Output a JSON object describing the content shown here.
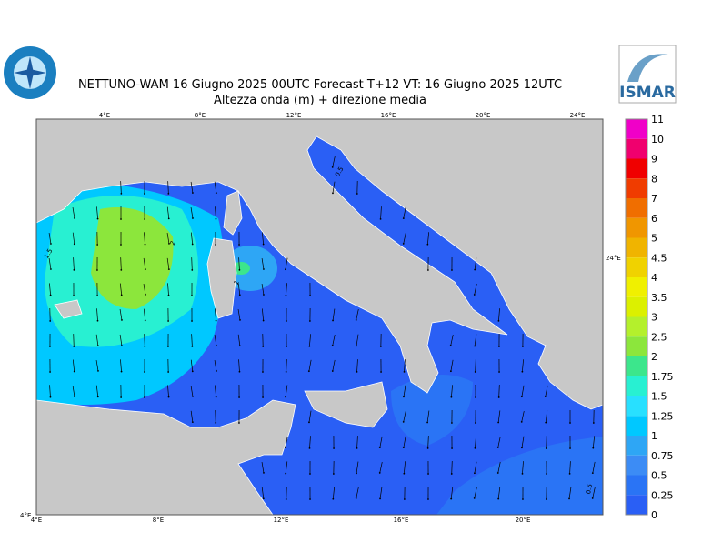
{
  "header": {
    "title": "NETTUNO-WAM  16   Giugno  2025 00UTC Forecast T+12 VT: 16   Giugno  2025 12UTC",
    "subtitle": "Altezza onda (m) + direzione media"
  },
  "logo": {
    "right": "ISMAR"
  },
  "map": {
    "lon_top": [
      "4°E",
      "8°E",
      "12°E",
      "16°E",
      "20°E",
      "24°E"
    ],
    "lon_bottom": [
      "4°E",
      "8°E",
      "12°E",
      "16°E",
      "20°E"
    ],
    "lon_right": "24°E",
    "corner": "4°E",
    "contour_labels": [
      "0.5",
      "2",
      "1.5",
      "1",
      "0.5"
    ]
  },
  "colorbar": {
    "labels": [
      "11",
      "10",
      "9",
      "8",
      "7",
      "6",
      "5",
      "4.5",
      "4",
      "3.5",
      "3",
      "2.5",
      "2",
      "1.75",
      "1.5",
      "1.25",
      "1",
      "0.75",
      "0.5",
      "0.25",
      "0"
    ],
    "colors": [
      "#f000c8",
      "#f0006e",
      "#f00000",
      "#f03c00",
      "#f06e00",
      "#f09600",
      "#f0b400",
      "#f0d200",
      "#f0f000",
      "#dcf000",
      "#b4f02c",
      "#8ce63c",
      "#3ce68c",
      "#28f0d2",
      "#28e0ff",
      "#00c8ff",
      "#2ea6f5",
      "#3c8cf5",
      "#2a74f5",
      "#2a5ff5"
    ]
  }
}
